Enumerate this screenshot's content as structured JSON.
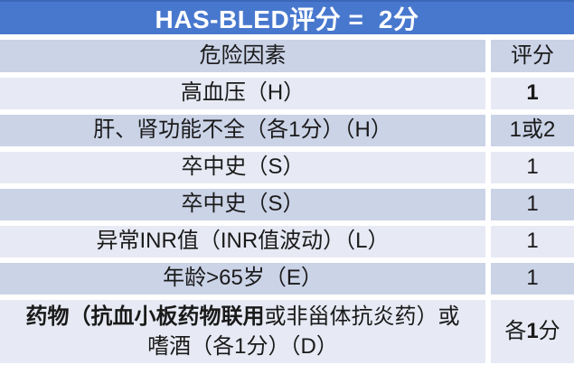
{
  "title": "HAS-BLED评分 =  2分",
  "columns": {
    "factor": "危险因素",
    "score": "评分"
  },
  "rows": [
    {
      "factor": "高血压（H）",
      "score": "1"
    },
    {
      "factor": "肝、肾功能不全（各1分）（H）",
      "score": "1或2"
    },
    {
      "factor": "卒中史（S）",
      "score": "1"
    },
    {
      "factor": "卒中史（S）",
      "score": "1"
    },
    {
      "factor": "异常INR值（INR值波动）（L）",
      "score": "1"
    },
    {
      "factor": "年龄>65岁（E）",
      "score": "1"
    }
  ],
  "last_row": {
    "factor_bold_part": "药物（抗血小板药物联用",
    "factor_normal_part": "或非甾体抗炎药）或",
    "factor_line2": "嗜酒（各1分）（D）",
    "score_pre": "各",
    "score_num": "1",
    "score_suf": "分"
  },
  "colors": {
    "title_bg": "#4878ce",
    "title_bg_top_edge": "#3b67b8",
    "title_text": "#ffffff",
    "row_dark": "#cbd3e7",
    "row_light": "#e7e9f4",
    "body_text": "#1a1a1a",
    "divider": "#ffffff"
  }
}
